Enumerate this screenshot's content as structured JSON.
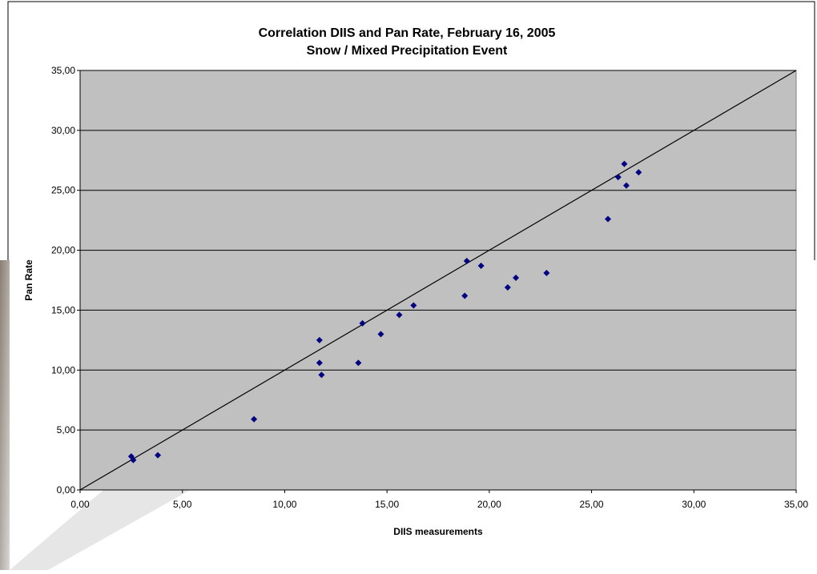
{
  "chart_data": {
    "type": "scatter",
    "title": "Correlation DIIS and Pan Rate, February 16, 2005",
    "subtitle": "Snow / Mixed Precipitation Event",
    "x_label": "DIIS measurements",
    "y_label": "Pan Rate",
    "x": [
      2.5,
      2.6,
      3.8,
      8.5,
      11.7,
      11.7,
      11.8,
      13.6,
      13.8,
      14.7,
      15.6,
      16.3,
      18.8,
      18.9,
      19.6,
      20.9,
      21.3,
      22.8,
      25.8,
      26.3,
      26.6,
      26.7,
      27.3
    ],
    "values": [
      2.8,
      2.5,
      2.9,
      5.9,
      12.5,
      10.6,
      9.6,
      10.6,
      13.9,
      13.0,
      14.6,
      15.4,
      16.2,
      19.1,
      18.7,
      16.9,
      17.7,
      18.1,
      22.6,
      26.1,
      27.2,
      25.4,
      26.5
    ],
    "color": "#000080",
    "reference_line": {
      "x": [
        0,
        35
      ],
      "y": [
        0,
        35
      ],
      "color": "#000000"
    },
    "xlim": [
      0,
      35
    ],
    "ylim": [
      0,
      35
    ],
    "xticks": [
      {
        "value": 0,
        "label": "0,00"
      },
      {
        "value": 5,
        "label": "5,00"
      },
      {
        "value": 10,
        "label": "10,00"
      },
      {
        "value": 15,
        "label": "15,00"
      },
      {
        "value": 20,
        "label": "20,00"
      },
      {
        "value": 25,
        "label": "25,00"
      },
      {
        "value": 30,
        "label": "30,00"
      },
      {
        "value": 35,
        "label": "35,00"
      }
    ],
    "yticks": [
      {
        "value": 0,
        "label": "0,00"
      },
      {
        "value": 5,
        "label": "5,00"
      },
      {
        "value": 10,
        "label": "10,00"
      },
      {
        "value": 15,
        "label": "15,00"
      },
      {
        "value": 20,
        "label": "20,00"
      },
      {
        "value": 25,
        "label": "25,00"
      },
      {
        "value": 30,
        "label": "30,00"
      },
      {
        "value": 35,
        "label": "35,00"
      }
    ],
    "grid": true,
    "plot_background": "#c0c0c0"
  }
}
